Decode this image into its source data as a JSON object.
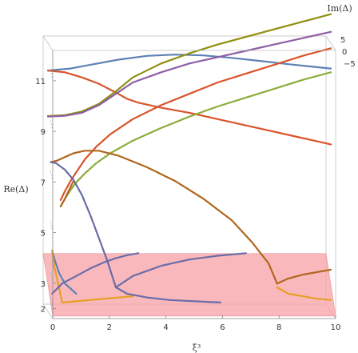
{
  "chart_data": {
    "type": "line",
    "xlabel": "ξ³",
    "ylabel": "Re(Δ)",
    "zlabel": "Im(Δ)",
    "xlim": [
      0,
      10
    ],
    "ylim": [
      1.6,
      12.2
    ],
    "zlim": [
      -5,
      5
    ],
    "x_ticks": [
      "0",
      "2",
      "4",
      "6",
      "8",
      "10"
    ],
    "y_ticks": [
      "2",
      "3",
      "5",
      "7",
      "9",
      "11"
    ],
    "z_ticks": [
      "−5",
      "0",
      "5"
    ],
    "grid": false,
    "colors": {
      "blue": "#5e81b5",
      "red": "#d9542a",
      "olive": "#8f8f10",
      "purple": "#8e5fa6",
      "orange": "#e79f24",
      "green": "#8cad3b",
      "brown": "#b1661e",
      "slate": "#6a6ca8",
      "band": "#f7a1a6"
    },
    "band": {
      "x": [
        0,
        10
      ],
      "y": [
        1.7,
        3.6
      ],
      "label": ""
    },
    "series": [
      {
        "color": "blue",
        "z": 0,
        "x": [
          0,
          0.8,
          1.5,
          2.5,
          3.5,
          4.5,
          5.5,
          6.5,
          7.5,
          8.5,
          9.3,
          10
        ],
        "y": [
          11.12,
          11.2,
          11.35,
          11.55,
          11.7,
          11.75,
          11.72,
          11.62,
          11.5,
          11.37,
          11.28,
          11.2
        ]
      },
      {
        "color": "red",
        "z": 0,
        "x": [
          0,
          0.6,
          1.2,
          1.8,
          2.4,
          2.8,
          3.2,
          4,
          5,
          6,
          7,
          8,
          9,
          10
        ],
        "y": [
          11.12,
          11.05,
          10.85,
          10.6,
          10.25,
          10.0,
          9.85,
          9.65,
          9.45,
          9.2,
          8.95,
          8.7,
          8.45,
          8.2
        ]
      },
      {
        "color": "olive",
        "z": 0,
        "x": [
          0,
          0.6,
          1.2,
          1.8,
          2.4,
          3,
          4,
          5,
          6,
          7,
          8,
          9,
          10
        ],
        "y": [
          9.32,
          9.36,
          9.5,
          9.8,
          10.3,
          10.85,
          11.4,
          11.8,
          12.15,
          12.45,
          12.75,
          13.05,
          13.35
        ]
      },
      {
        "color": "purple",
        "z": 0,
        "x": [
          0,
          0.6,
          1.2,
          1.8,
          2.4,
          3,
          4,
          5,
          6,
          7,
          8,
          9,
          10
        ],
        "y": [
          9.3,
          9.33,
          9.45,
          9.75,
          10.2,
          10.65,
          11.05,
          11.4,
          11.65,
          11.9,
          12.15,
          12.4,
          12.65
        ]
      },
      {
        "color": "red",
        "z": 0,
        "x": [
          0.45,
          0.6,
          0.8,
          1.0,
          1.3,
          1.7,
          2.2,
          3,
          4,
          5,
          6,
          7,
          8,
          9,
          10
        ],
        "y": [
          6.0,
          6.35,
          6.75,
          7.1,
          7.6,
          8.1,
          8.6,
          9.2,
          9.75,
          10.2,
          10.65,
          11.0,
          11.35,
          11.7,
          12.0
        ]
      },
      {
        "color": "green",
        "z": 0,
        "x": [
          0.45,
          0.6,
          0.8,
          1.0,
          1.3,
          1.7,
          2.2,
          3,
          4,
          5,
          6,
          7,
          8,
          9,
          10
        ],
        "y": [
          5.75,
          6.05,
          6.4,
          6.7,
          7.05,
          7.45,
          7.85,
          8.35,
          8.85,
          9.3,
          9.7,
          10.05,
          10.4,
          10.75,
          11.05
        ]
      },
      {
        "color": "brown",
        "z": 0,
        "x": [
          0.1,
          0.3,
          0.6,
          0.9,
          1.3,
          1.8,
          2.5,
          3.5,
          4.5,
          5.5,
          6.5,
          7.2,
          7.8,
          8.1
        ],
        "y": [
          7.5,
          7.55,
          7.7,
          7.85,
          7.95,
          7.95,
          7.75,
          7.3,
          6.75,
          6.05,
          5.2,
          4.35,
          3.5,
          2.7
        ]
      },
      {
        "color": "slate",
        "z": 0,
        "x": [
          0.1,
          0.3,
          0.6,
          0.9,
          1.2,
          1.5,
          1.8,
          2.1,
          2.4
        ],
        "y": [
          7.5,
          7.45,
          7.2,
          6.8,
          6.2,
          5.4,
          4.5,
          3.6,
          2.55
        ]
      },
      {
        "color": "brown",
        "z": 0,
        "x": [
          0.45,
          0.5,
          0.6,
          0.75,
          0.9
        ],
        "y": [
          5.75,
          5.85,
          6.05,
          6.4,
          6.75
        ]
      },
      {
        "color": "blue",
        "z": 0,
        "x": [
          0.15,
          0.25,
          0.4,
          0.6,
          1.0
        ],
        "y": [
          4.0,
          3.6,
          3.1,
          2.7,
          2.3
        ]
      },
      {
        "color": "orange",
        "z": 0,
        "x": [
          0.15,
          0.2,
          0.3,
          0.4,
          0.5
        ],
        "y": [
          4.0,
          3.5,
          3.0,
          2.5,
          1.95
        ]
      },
      {
        "color": "slate",
        "z": 0,
        "x": [
          0.15,
          0.5,
          1,
          1.5,
          2,
          2.4,
          2.8,
          3.2
        ],
        "y": [
          2.3,
          2.7,
          3.0,
          3.3,
          3.55,
          3.7,
          3.82,
          3.9
        ]
      },
      {
        "color": "orange",
        "z": 0,
        "x": [
          0.5,
          1.0,
          1.5,
          2.0,
          2.5,
          3.0
        ],
        "y": [
          1.95,
          2.0,
          2.05,
          2.1,
          2.15,
          2.2
        ]
      },
      {
        "color": "slate",
        "z": 0,
        "x": [
          2.4,
          2.8,
          3.5,
          4.3,
          5.2,
          6.1
        ],
        "y": [
          2.55,
          2.3,
          2.15,
          2.05,
          2.0,
          1.95
        ]
      },
      {
        "color": "slate",
        "z": 0,
        "x": [
          2.4,
          3.0,
          4.0,
          5.0,
          6.0,
          7.0
        ],
        "y": [
          2.55,
          3.0,
          3.4,
          3.65,
          3.8,
          3.9
        ]
      },
      {
        "color": "brown",
        "z": 0,
        "x": [
          8.1,
          8.5,
          9.0,
          9.5,
          10.0
        ],
        "y": [
          2.7,
          2.9,
          3.05,
          3.15,
          3.25
        ]
      },
      {
        "color": "orange",
        "z": 0,
        "x": [
          8.1,
          8.5,
          9.0,
          9.5,
          10.0
        ],
        "y": [
          2.55,
          2.3,
          2.2,
          2.1,
          2.05
        ]
      }
    ]
  }
}
